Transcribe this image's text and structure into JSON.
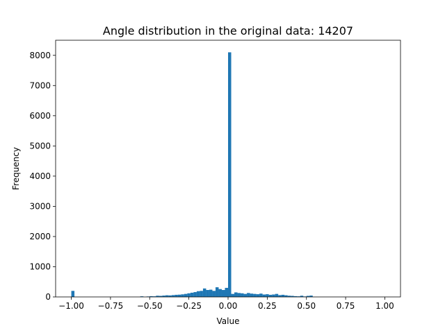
{
  "chart_data": {
    "type": "bar",
    "title": "Angle distribution in the original data: 14207",
    "xlabel": "Value",
    "ylabel": "Frequency",
    "xlim": [
      -1.1,
      1.1
    ],
    "ylim": [
      0,
      8500
    ],
    "xticks": [
      -1.0,
      -0.75,
      -0.5,
      -0.25,
      0.0,
      0.25,
      0.5,
      0.75,
      1.0
    ],
    "xtick_labels": [
      "−1.00",
      "−0.75",
      "−0.50",
      "−0.25",
      "0.00",
      "0.25",
      "0.50",
      "0.75",
      "1.00"
    ],
    "yticks": [
      0,
      1000,
      2000,
      3000,
      4000,
      5000,
      6000,
      7000,
      8000
    ],
    "ytick_labels": [
      "0",
      "1000",
      "2000",
      "3000",
      "4000",
      "5000",
      "6000",
      "7000",
      "8000"
    ],
    "grid": false,
    "bar_color": "#1f77b4",
    "bin_width": 0.02,
    "bin_starts": [
      -1.0,
      -0.56,
      -0.52,
      -0.5,
      -0.48,
      -0.46,
      -0.44,
      -0.42,
      -0.4,
      -0.38,
      -0.36,
      -0.34,
      -0.32,
      -0.3,
      -0.28,
      -0.26,
      -0.24,
      -0.22,
      -0.2,
      -0.18,
      -0.16,
      -0.14,
      -0.12,
      -0.1,
      -0.08,
      -0.06,
      -0.04,
      -0.02,
      0.0,
      0.02,
      0.04,
      0.06,
      0.08,
      0.1,
      0.12,
      0.14,
      0.16,
      0.18,
      0.2,
      0.22,
      0.24,
      0.26,
      0.28,
      0.3,
      0.32,
      0.34,
      0.36,
      0.38,
      0.4,
      0.42,
      0.44,
      0.46,
      0.48,
      0.5,
      0.52
    ],
    "values": [
      200,
      20,
      15,
      25,
      20,
      40,
      35,
      45,
      55,
      50,
      60,
      70,
      75,
      85,
      100,
      120,
      140,
      160,
      190,
      200,
      280,
      230,
      240,
      200,
      320,
      260,
      230,
      300,
      8100,
      100,
      150,
      130,
      120,
      100,
      130,
      110,
      100,
      90,
      110,
      80,
      90,
      70,
      80,
      100,
      60,
      70,
      55,
      40,
      35,
      25,
      20,
      40,
      15,
      35,
      45
    ]
  }
}
